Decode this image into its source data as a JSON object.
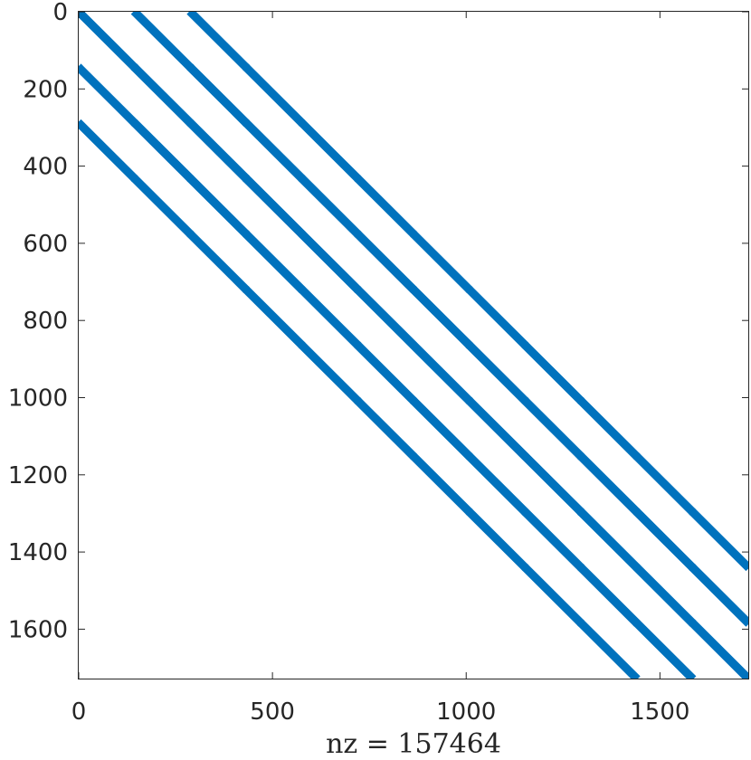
{
  "chart_data": {
    "type": "heatmap",
    "title": "",
    "xlabel": "nz = 157464",
    "ylabel": "",
    "xlim": [
      0,
      1728
    ],
    "ylim": [
      0,
      1728
    ],
    "y_reversed": true,
    "grid": false,
    "marker_color": "#0072BD",
    "x_ticks": [
      0,
      500,
      1000,
      1500
    ],
    "x_tick_labels": [
      "0",
      "500",
      "1000",
      "1500"
    ],
    "y_ticks": [
      0,
      200,
      400,
      600,
      800,
      1000,
      1200,
      1400,
      1600
    ],
    "y_tick_labels": [
      "0",
      "200",
      "400",
      "600",
      "800",
      "1000",
      "1200",
      "1400",
      "1600"
    ],
    "nonzeros": 157464,
    "matrix_size": 1728,
    "block_size": 144,
    "block_count": 12,
    "sub_block_size": 12,
    "band_column_offsets": [
      0,
      144,
      288
    ],
    "band_row_offsets": [
      0,
      144,
      288
    ]
  }
}
